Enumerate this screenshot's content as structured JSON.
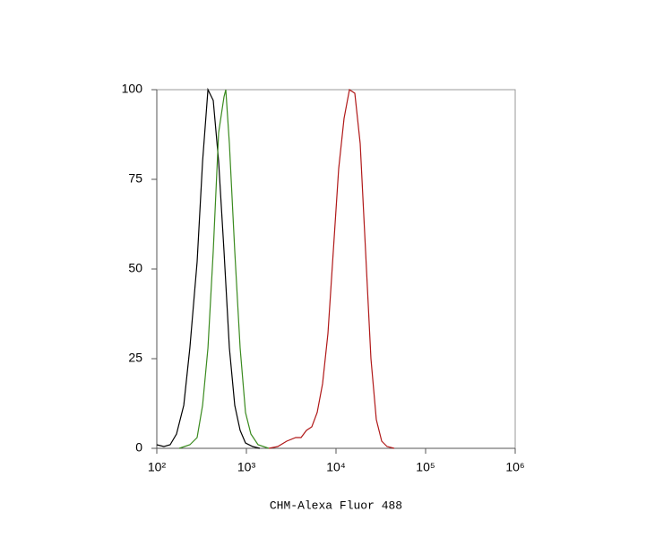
{
  "chart_data": {
    "type": "line",
    "x_label": "CHM-Alexa Fluor 488",
    "xscale": "log",
    "xlim": [
      100,
      1000000
    ],
    "xticks": [
      {
        "value": 100,
        "label": "10²"
      },
      {
        "value": 1000,
        "label": "10³"
      },
      {
        "value": 10000,
        "label": "10⁴"
      },
      {
        "value": 100000,
        "label": "10⁵"
      },
      {
        "value": 1000000,
        "label": "10⁶"
      }
    ],
    "ylim": [
      0,
      100
    ],
    "yticks": [
      0,
      25,
      50,
      75,
      100
    ],
    "grid": false,
    "series": [
      {
        "color": "#000000",
        "x": [
          100,
          120,
          141,
          166,
          200,
          234,
          282,
          324,
          372,
          427,
          490,
          562,
          646,
          741,
          851,
          977,
          1175,
          1413
        ],
        "values": [
          1,
          0.5,
          1,
          4,
          12,
          28,
          52,
          80,
          100,
          97,
          80,
          55,
          28,
          12,
          5,
          1.5,
          0.5,
          0
        ]
      },
      {
        "color": "#3a8a1e",
        "x": [
          178,
          234,
          282,
          324,
          372,
          427,
          490,
          562,
          589,
          646,
          741,
          851,
          977,
          1122,
          1349,
          1778
        ],
        "values": [
          0,
          1,
          3,
          12,
          28,
          55,
          88,
          98,
          100,
          85,
          55,
          28,
          10,
          4,
          1,
          0
        ]
      },
      {
        "color": "#b01818",
        "x": [
          1778,
          2239,
          2818,
          3548,
          4074,
          4677,
          5370,
          6166,
          7079,
          8128,
          9333,
          10715,
          12303,
          14125,
          16218,
          18621,
          21380,
          24547,
          28184,
          32359,
          37154,
          44668
        ],
        "values": [
          0,
          0.5,
          2,
          3,
          3,
          5,
          6,
          10,
          18,
          32,
          55,
          78,
          92,
          100,
          99,
          85,
          55,
          25,
          8,
          2,
          0.5,
          0
        ]
      }
    ]
  }
}
